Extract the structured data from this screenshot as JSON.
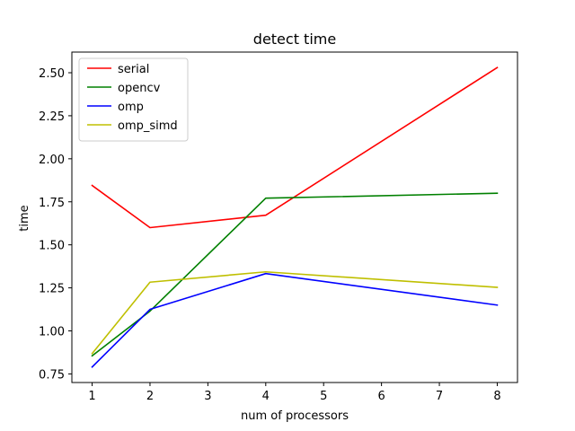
{
  "chart_data": {
    "type": "line",
    "title": "detect time",
    "xlabel": "num of processors",
    "ylabel": "time",
    "x": [
      1,
      2,
      4,
      8
    ],
    "xticks": [
      "1",
      "2",
      "3",
      "4",
      "5",
      "6",
      "7",
      "8"
    ],
    "yticks": [
      "0.75",
      "1.00",
      "1.25",
      "1.50",
      "1.75",
      "2.00",
      "2.25",
      "2.50"
    ],
    "xlim": [
      0.65,
      8.35
    ],
    "ylim": [
      0.7,
      2.62
    ],
    "grid": false,
    "legend_position": "top-left",
    "series": [
      {
        "name": "serial",
        "color": "#ff0000",
        "values": [
          1.845,
          1.6,
          1.672,
          2.53
        ]
      },
      {
        "name": "opencv",
        "color": "#008000",
        "values": [
          0.855,
          1.115,
          1.771,
          1.8
        ]
      },
      {
        "name": "omp",
        "color": "#0000ff",
        "values": [
          0.79,
          1.125,
          1.333,
          1.15
        ]
      },
      {
        "name": "omp_simd",
        "color": "#bfbf00",
        "values": [
          0.868,
          1.283,
          1.343,
          1.253
        ]
      }
    ]
  }
}
